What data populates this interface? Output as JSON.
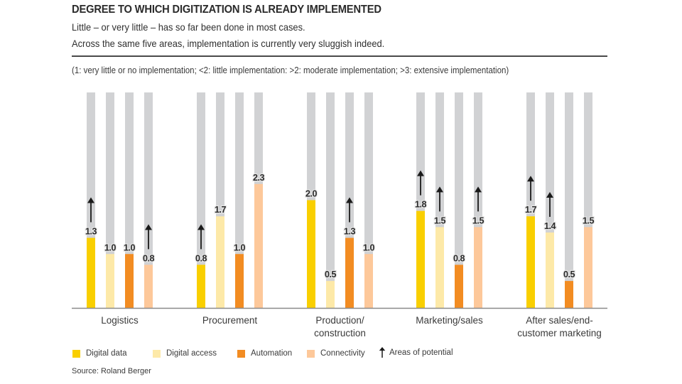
{
  "header": {
    "title": "DEGREE TO WHICH DIGITIZATION IS ALREADY IMPLEMENTED",
    "subtitle_line1": "Little – or very little – has so far been done in most cases.",
    "subtitle_line2": "Across the same five areas, implementation is currently very sluggish indeed.",
    "scale_note": "(1: very little or no implementation; <2: little implementation: >2: moderate implementation; >3: extensive implementation)"
  },
  "legend": {
    "items": [
      {
        "label": "Digital data",
        "color": "#F9CF00"
      },
      {
        "label": "Digital access",
        "color": "#FDE9A8"
      },
      {
        "label": "Automation",
        "color": "#F28C22"
      },
      {
        "label": "Connectivity",
        "color": "#FDC89A"
      }
    ],
    "arrow_label": "Areas of potential"
  },
  "source": "Source: Roland Berger",
  "chart_data": {
    "type": "bar",
    "title": "DEGREE TO WHICH DIGITIZATION IS ALREADY IMPLEMENTED",
    "xlabel": "",
    "ylabel": "",
    "ylim": [
      0,
      4
    ],
    "grid": false,
    "legend_position": "bottom-left",
    "background_bar_color": "#D1D2D4",
    "categories": [
      [
        "Logistics"
      ],
      [
        "Procurement"
      ],
      [
        "Production/",
        "construction"
      ],
      [
        "Marketing/sales"
      ],
      [
        "After sales/end-",
        "customer marketing"
      ]
    ],
    "series": [
      {
        "name": "Digital data",
        "color": "#F9CF00",
        "values": [
          1.3,
          0.8,
          2.0,
          1.8,
          1.7
        ],
        "labels": [
          "1.3",
          "0.8",
          "2.0",
          "1.8",
          "1.7"
        ]
      },
      {
        "name": "Digital access",
        "color": "#FDE9A8",
        "values": [
          1.0,
          1.7,
          0.5,
          1.5,
          1.4
        ],
        "labels": [
          "1.0",
          "1.7",
          "0.5",
          "1.5",
          "1.4"
        ]
      },
      {
        "name": "Automation",
        "color": "#F28C22",
        "values": [
          1.0,
          1.0,
          1.3,
          0.8,
          0.5
        ],
        "labels": [
          "1.0",
          "1.0",
          "1.3",
          "0.8",
          "0.5"
        ]
      },
      {
        "name": "Connectivity",
        "color": "#FDC89A",
        "values": [
          0.8,
          2.3,
          1.0,
          1.5,
          1.5
        ],
        "labels": [
          "0.8",
          "2.3",
          "1.0",
          "1.5",
          "1.5"
        ]
      }
    ],
    "areas_of_potential": [
      [
        true,
        false,
        false,
        true
      ],
      [
        true,
        false,
        false,
        false
      ],
      [
        false,
        false,
        true,
        false
      ],
      [
        true,
        true,
        false,
        true
      ],
      [
        true,
        true,
        false,
        false
      ]
    ]
  }
}
